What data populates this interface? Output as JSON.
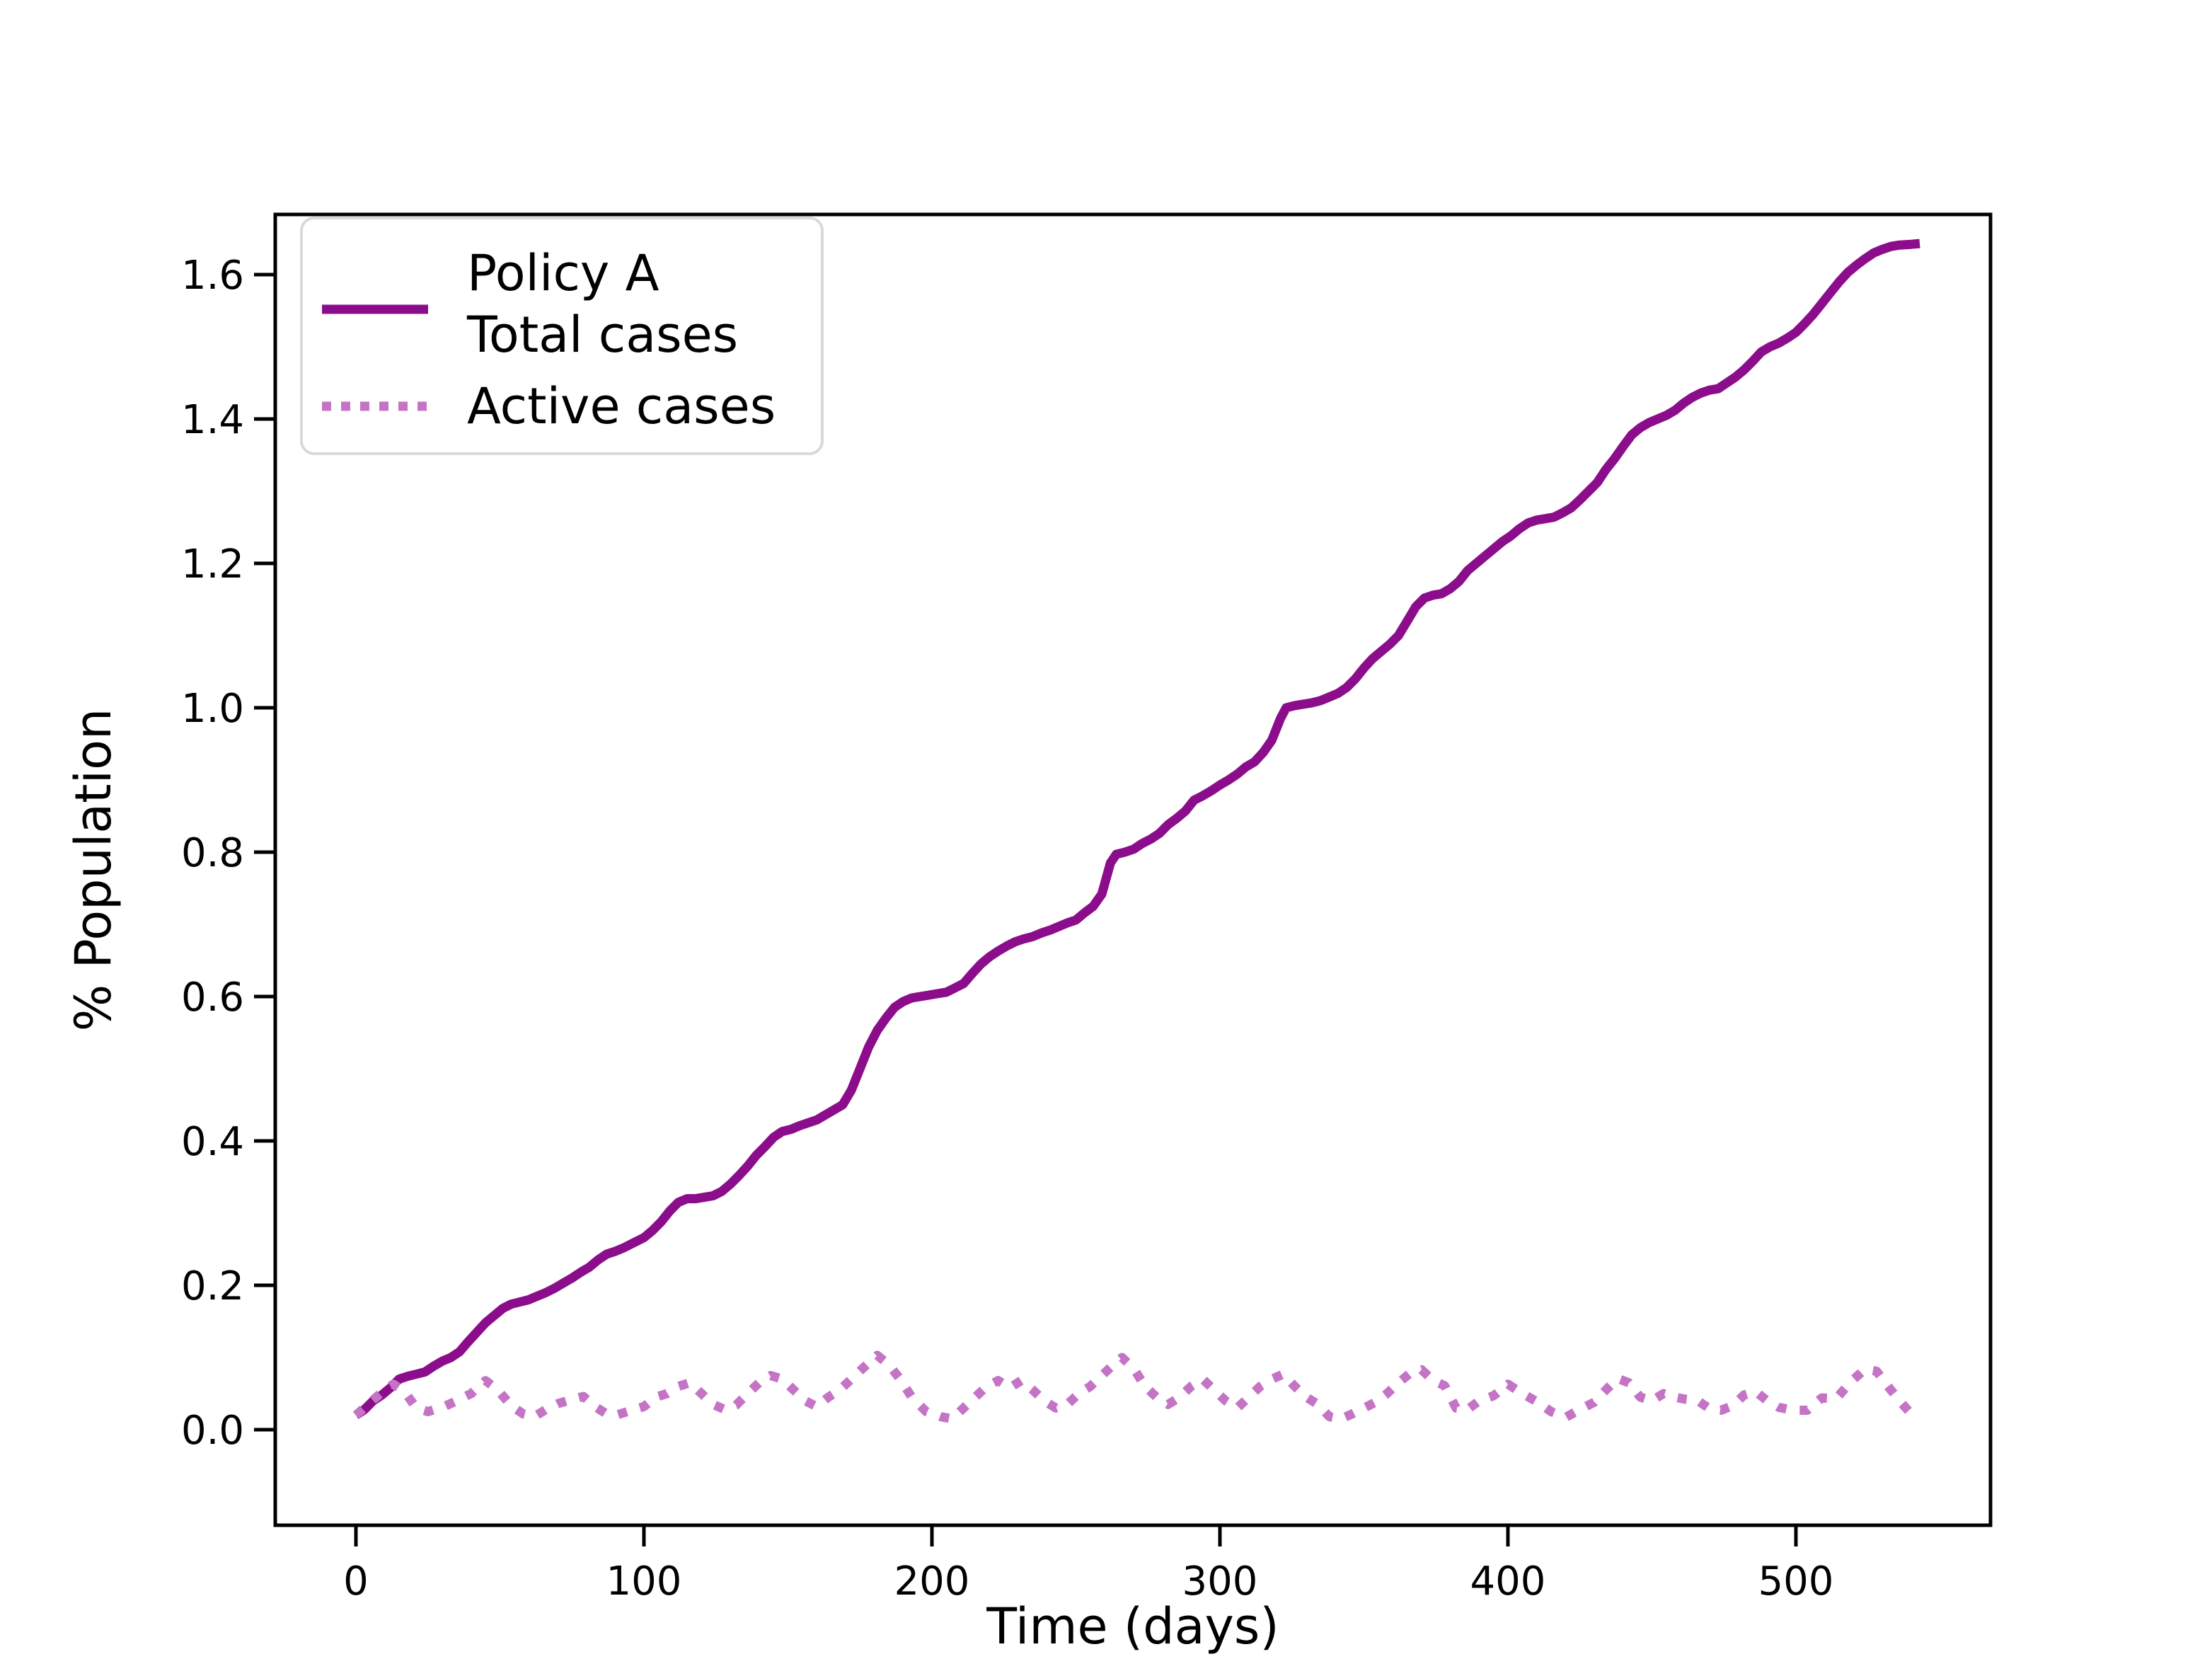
{
  "figure": {
    "background": "#ffffff",
    "axes_edge_color": "#000000",
    "legend_border_color": "#d9d9d9",
    "legend_background": "#ffffff"
  },
  "chart_data": {
    "type": "line",
    "title": "",
    "xlabel": "Time (days)",
    "ylabel": "% Population",
    "xlim": [
      -28,
      568
    ],
    "ylim": [
      -0.132,
      1.683
    ],
    "grid": false,
    "legend_position": "upper-left",
    "x_ticks": [
      0,
      100,
      200,
      300,
      400,
      500
    ],
    "x_tick_labels": [
      "0",
      "100",
      "200",
      "300",
      "400",
      "500"
    ],
    "y_ticks": [
      0.0,
      0.2,
      0.4,
      0.6,
      0.8,
      1.0,
      1.2,
      1.4,
      1.6
    ],
    "y_tick_labels": [
      "0.0",
      "0.2",
      "0.4",
      "0.6",
      "0.8",
      "1.0",
      "1.2",
      "1.4",
      "1.6"
    ],
    "series": [
      {
        "name": "Policy A Total cases",
        "legend_lines": [
          "Policy A",
          "Total cases"
        ],
        "color": "#8b0d8b",
        "style": "solid",
        "points": [
          [
            0,
            0.02
          ],
          [
            3,
            0.028
          ],
          [
            6,
            0.04
          ],
          [
            9,
            0.048
          ],
          [
            12,
            0.058
          ],
          [
            15,
            0.07
          ],
          [
            18,
            0.074
          ],
          [
            21,
            0.077
          ],
          [
            24,
            0.08
          ],
          [
            27,
            0.088
          ],
          [
            30,
            0.095
          ],
          [
            33,
            0.1
          ],
          [
            36,
            0.108
          ],
          [
            39,
            0.122
          ],
          [
            42,
            0.135
          ],
          [
            45,
            0.148
          ],
          [
            48,
            0.158
          ],
          [
            51,
            0.168
          ],
          [
            54,
            0.174
          ],
          [
            57,
            0.177
          ],
          [
            60,
            0.18
          ],
          [
            63,
            0.185
          ],
          [
            66,
            0.19
          ],
          [
            69,
            0.196
          ],
          [
            72,
            0.203
          ],
          [
            75,
            0.21
          ],
          [
            78,
            0.218
          ],
          [
            81,
            0.225
          ],
          [
            84,
            0.235
          ],
          [
            87,
            0.243
          ],
          [
            90,
            0.247
          ],
          [
            93,
            0.252
          ],
          [
            96,
            0.258
          ],
          [
            100,
            0.266
          ],
          [
            103,
            0.276
          ],
          [
            106,
            0.288
          ],
          [
            109,
            0.303
          ],
          [
            112,
            0.315
          ],
          [
            115,
            0.32
          ],
          [
            118,
            0.32
          ],
          [
            121,
            0.322
          ],
          [
            124,
            0.324
          ],
          [
            127,
            0.33
          ],
          [
            130,
            0.34
          ],
          [
            133,
            0.352
          ],
          [
            136,
            0.365
          ],
          [
            139,
            0.38
          ],
          [
            142,
            0.392
          ],
          [
            145,
            0.405
          ],
          [
            148,
            0.413
          ],
          [
            151,
            0.416
          ],
          [
            154,
            0.421
          ],
          [
            157,
            0.425
          ],
          [
            160,
            0.429
          ],
          [
            163,
            0.436
          ],
          [
            166,
            0.443
          ],
          [
            169,
            0.45
          ],
          [
            172,
            0.47
          ],
          [
            175,
            0.5
          ],
          [
            178,
            0.53
          ],
          [
            181,
            0.553
          ],
          [
            184,
            0.57
          ],
          [
            187,
            0.585
          ],
          [
            190,
            0.593
          ],
          [
            193,
            0.598
          ],
          [
            196,
            0.6
          ],
          [
            199,
            0.602
          ],
          [
            202,
            0.604
          ],
          [
            205,
            0.606
          ],
          [
            208,
            0.612
          ],
          [
            211,
            0.618
          ],
          [
            214,
            0.632
          ],
          [
            217,
            0.645
          ],
          [
            220,
            0.655
          ],
          [
            223,
            0.663
          ],
          [
            226,
            0.67
          ],
          [
            229,
            0.676
          ],
          [
            232,
            0.68
          ],
          [
            235,
            0.683
          ],
          [
            238,
            0.688
          ],
          [
            241,
            0.692
          ],
          [
            244,
            0.697
          ],
          [
            247,
            0.702
          ],
          [
            250,
            0.706
          ],
          [
            253,
            0.716
          ],
          [
            256,
            0.725
          ],
          [
            259,
            0.742
          ],
          [
            262,
            0.785
          ],
          [
            264,
            0.797
          ],
          [
            267,
            0.8
          ],
          [
            270,
            0.804
          ],
          [
            273,
            0.812
          ],
          [
            276,
            0.818
          ],
          [
            279,
            0.826
          ],
          [
            282,
            0.838
          ],
          [
            285,
            0.847
          ],
          [
            288,
            0.857
          ],
          [
            291,
            0.872
          ],
          [
            294,
            0.878
          ],
          [
            297,
            0.885
          ],
          [
            300,
            0.893
          ],
          [
            303,
            0.9
          ],
          [
            306,
            0.908
          ],
          [
            309,
            0.918
          ],
          [
            312,
            0.925
          ],
          [
            315,
            0.938
          ],
          [
            318,
            0.955
          ],
          [
            321,
            0.985
          ],
          [
            323,
            1.0
          ],
          [
            326,
            1.003
          ],
          [
            329,
            1.005
          ],
          [
            332,
            1.007
          ],
          [
            335,
            1.01
          ],
          [
            338,
            1.015
          ],
          [
            341,
            1.02
          ],
          [
            344,
            1.028
          ],
          [
            347,
            1.04
          ],
          [
            350,
            1.055
          ],
          [
            353,
            1.068
          ],
          [
            356,
            1.078
          ],
          [
            359,
            1.088
          ],
          [
            362,
            1.1
          ],
          [
            365,
            1.12
          ],
          [
            368,
            1.14
          ],
          [
            371,
            1.152
          ],
          [
            374,
            1.156
          ],
          [
            377,
            1.158
          ],
          [
            380,
            1.165
          ],
          [
            383,
            1.175
          ],
          [
            386,
            1.19
          ],
          [
            389,
            1.2
          ],
          [
            392,
            1.21
          ],
          [
            395,
            1.22
          ],
          [
            398,
            1.23
          ],
          [
            401,
            1.238
          ],
          [
            404,
            1.248
          ],
          [
            407,
            1.256
          ],
          [
            410,
            1.26
          ],
          [
            413,
            1.262
          ],
          [
            416,
            1.264
          ],
          [
            419,
            1.27
          ],
          [
            422,
            1.277
          ],
          [
            425,
            1.288
          ],
          [
            428,
            1.3
          ],
          [
            431,
            1.312
          ],
          [
            434,
            1.33
          ],
          [
            437,
            1.345
          ],
          [
            440,
            1.362
          ],
          [
            443,
            1.378
          ],
          [
            446,
            1.388
          ],
          [
            449,
            1.395
          ],
          [
            452,
            1.4
          ],
          [
            455,
            1.405
          ],
          [
            458,
            1.412
          ],
          [
            461,
            1.422
          ],
          [
            464,
            1.43
          ],
          [
            467,
            1.436
          ],
          [
            470,
            1.44
          ],
          [
            473,
            1.442
          ],
          [
            476,
            1.45
          ],
          [
            479,
            1.458
          ],
          [
            482,
            1.468
          ],
          [
            485,
            1.48
          ],
          [
            488,
            1.493
          ],
          [
            491,
            1.5
          ],
          [
            494,
            1.505
          ],
          [
            497,
            1.512
          ],
          [
            500,
            1.52
          ],
          [
            503,
            1.532
          ],
          [
            506,
            1.545
          ],
          [
            509,
            1.56
          ],
          [
            512,
            1.575
          ],
          [
            515,
            1.59
          ],
          [
            518,
            1.603
          ],
          [
            521,
            1.613
          ],
          [
            524,
            1.622
          ],
          [
            527,
            1.63
          ],
          [
            530,
            1.635
          ],
          [
            533,
            1.639
          ],
          [
            536,
            1.641
          ],
          [
            540,
            1.642
          ],
          [
            543,
            1.643
          ]
        ]
      },
      {
        "name": "Active cases",
        "legend_lines": [
          "Active cases"
        ],
        "color": "#c574c5",
        "style": "dotted",
        "points": [
          [
            0,
            0.02
          ],
          [
            5,
            0.038
          ],
          [
            10,
            0.055
          ],
          [
            13,
            0.063
          ],
          [
            17,
            0.052
          ],
          [
            21,
            0.03
          ],
          [
            25,
            0.025
          ],
          [
            30,
            0.031
          ],
          [
            35,
            0.04
          ],
          [
            40,
            0.05
          ],
          [
            45,
            0.068
          ],
          [
            49,
            0.056
          ],
          [
            54,
            0.033
          ],
          [
            58,
            0.022
          ],
          [
            62,
            0.018
          ],
          [
            66,
            0.028
          ],
          [
            70,
            0.036
          ],
          [
            75,
            0.042
          ],
          [
            79,
            0.046
          ],
          [
            83,
            0.032
          ],
          [
            87,
            0.022
          ],
          [
            91,
            0.021
          ],
          [
            95,
            0.026
          ],
          [
            100,
            0.032
          ],
          [
            104,
            0.045
          ],
          [
            108,
            0.05
          ],
          [
            112,
            0.06
          ],
          [
            116,
            0.065
          ],
          [
            120,
            0.05
          ],
          [
            124,
            0.035
          ],
          [
            128,
            0.028
          ],
          [
            132,
            0.034
          ],
          [
            136,
            0.05
          ],
          [
            140,
            0.065
          ],
          [
            144,
            0.075
          ],
          [
            148,
            0.07
          ],
          [
            152,
            0.055
          ],
          [
            156,
            0.04
          ],
          [
            160,
            0.032
          ],
          [
            164,
            0.045
          ],
          [
            168,
            0.055
          ],
          [
            172,
            0.07
          ],
          [
            176,
            0.085
          ],
          [
            181,
            0.103
          ],
          [
            185,
            0.09
          ],
          [
            189,
            0.07
          ],
          [
            193,
            0.045
          ],
          [
            198,
            0.025
          ],
          [
            203,
            0.018
          ],
          [
            207,
            0.015
          ],
          [
            211,
            0.03
          ],
          [
            215,
            0.045
          ],
          [
            219,
            0.06
          ],
          [
            223,
            0.068
          ],
          [
            227,
            0.058
          ],
          [
            231,
            0.068
          ],
          [
            235,
            0.055
          ],
          [
            239,
            0.04
          ],
          [
            243,
            0.03
          ],
          [
            247,
            0.035
          ],
          [
            251,
            0.05
          ],
          [
            255,
            0.06
          ],
          [
            259,
            0.075
          ],
          [
            263,
            0.09
          ],
          [
            266,
            0.1
          ],
          [
            270,
            0.085
          ],
          [
            274,
            0.06
          ],
          [
            278,
            0.045
          ],
          [
            282,
            0.035
          ],
          [
            286,
            0.045
          ],
          [
            290,
            0.06
          ],
          [
            294,
            0.07
          ],
          [
            298,
            0.055
          ],
          [
            302,
            0.04
          ],
          [
            306,
            0.03
          ],
          [
            310,
            0.045
          ],
          [
            314,
            0.06
          ],
          [
            318,
            0.07
          ],
          [
            322,
            0.077
          ],
          [
            326,
            0.06
          ],
          [
            330,
            0.045
          ],
          [
            334,
            0.035
          ],
          [
            338,
            0.018
          ],
          [
            342,
            0.015
          ],
          [
            346,
            0.022
          ],
          [
            350,
            0.03
          ],
          [
            354,
            0.038
          ],
          [
            358,
            0.05
          ],
          [
            362,
            0.065
          ],
          [
            366,
            0.078
          ],
          [
            370,
            0.083
          ],
          [
            374,
            0.068
          ],
          [
            378,
            0.061
          ],
          [
            382,
            0.03
          ],
          [
            386,
            0.028
          ],
          [
            390,
            0.04
          ],
          [
            395,
            0.047
          ],
          [
            400,
            0.063
          ],
          [
            405,
            0.05
          ],
          [
            410,
            0.039
          ],
          [
            415,
            0.025
          ],
          [
            420,
            0.017
          ],
          [
            425,
            0.028
          ],
          [
            430,
            0.038
          ],
          [
            434,
            0.055
          ],
          [
            438,
            0.071
          ],
          [
            442,
            0.065
          ],
          [
            446,
            0.045
          ],
          [
            450,
            0.04
          ],
          [
            454,
            0.05
          ],
          [
            458,
            0.045
          ],
          [
            462,
            0.042
          ],
          [
            466,
            0.04
          ],
          [
            470,
            0.029
          ],
          [
            474,
            0.027
          ],
          [
            478,
            0.033
          ],
          [
            482,
            0.048
          ],
          [
            486,
            0.053
          ],
          [
            490,
            0.04
          ],
          [
            494,
            0.031
          ],
          [
            499,
            0.027
          ],
          [
            504,
            0.027
          ],
          [
            509,
            0.044
          ],
          [
            514,
            0.043
          ],
          [
            519,
            0.066
          ],
          [
            524,
            0.084
          ],
          [
            528,
            0.081
          ],
          [
            532,
            0.06
          ],
          [
            536,
            0.04
          ],
          [
            540,
            0.022
          ]
        ]
      }
    ]
  }
}
